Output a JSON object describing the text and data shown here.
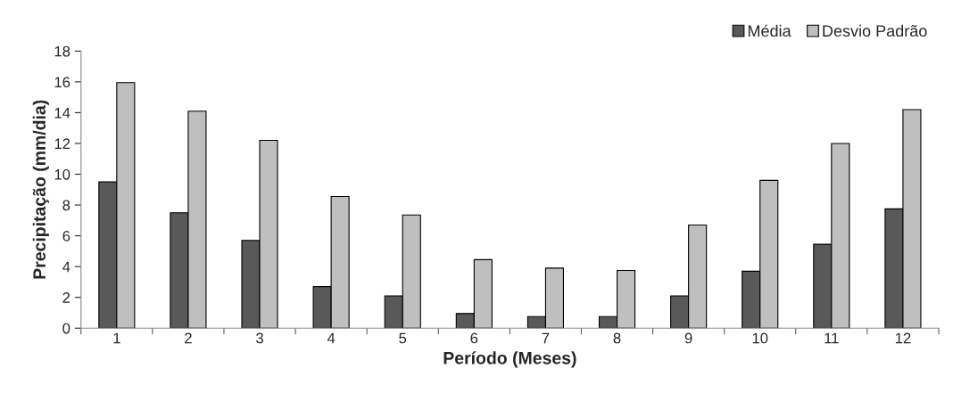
{
  "chart_data": {
    "type": "bar",
    "xlabel": "Período (Meses)",
    "ylabel": "Precipitação (mm/dia)",
    "categories": [
      "1",
      "2",
      "3",
      "4",
      "5",
      "6",
      "7",
      "8",
      "9",
      "10",
      "11",
      "12"
    ],
    "series": [
      {
        "name": "Média",
        "color": "#595959",
        "values": [
          9.5,
          7.5,
          5.7,
          2.7,
          2.1,
          0.95,
          0.75,
          0.75,
          2.1,
          3.7,
          5.45,
          7.75
        ]
      },
      {
        "name": "Desvio Padrão",
        "color": "#bfbfbf",
        "values": [
          15.95,
          14.1,
          12.2,
          8.55,
          7.35,
          4.45,
          3.9,
          3.75,
          6.7,
          9.6,
          12.0,
          14.2
        ]
      }
    ],
    "ylim": [
      0,
      18
    ],
    "yticks": [
      0,
      2,
      4,
      6,
      8,
      10,
      12,
      14,
      16,
      18
    ],
    "grid": false,
    "legend": "top right"
  }
}
